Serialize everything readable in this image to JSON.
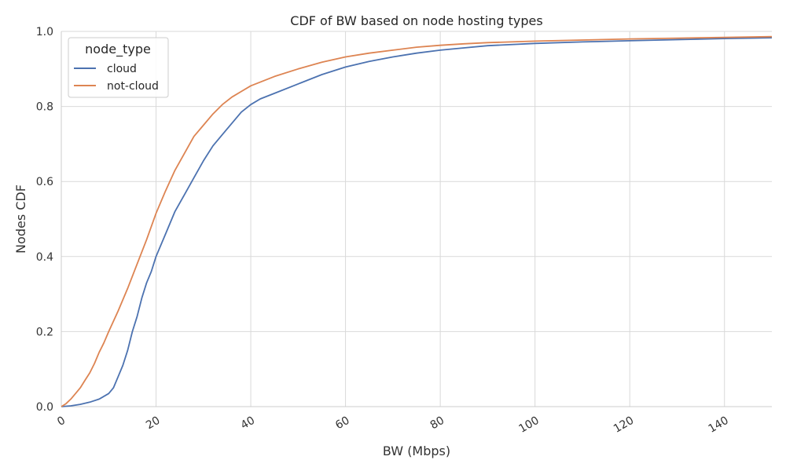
{
  "chart_data": {
    "type": "line",
    "title": "CDF of BW based on node hosting types",
    "xlabel": "BW (Mbps)",
    "ylabel": "Nodes CDF",
    "xlim": [
      0,
      150
    ],
    "ylim": [
      0,
      1
    ],
    "grid": true,
    "legend": {
      "title": "node_type",
      "placement": "top-left"
    },
    "x_ticks": [
      {
        "value": 0,
        "label": "0"
      },
      {
        "value": 20,
        "label": "20"
      },
      {
        "value": 40,
        "label": "40"
      },
      {
        "value": 60,
        "label": "60"
      },
      {
        "value": 80,
        "label": "80"
      },
      {
        "value": 100,
        "label": "100"
      },
      {
        "value": 120,
        "label": "120"
      },
      {
        "value": 140,
        "label": "140"
      }
    ],
    "y_ticks": [
      {
        "value": 0,
        "label": "0.0"
      },
      {
        "value": 0.2,
        "label": "0.2"
      },
      {
        "value": 0.4,
        "label": "0.4"
      },
      {
        "value": 0.6,
        "label": "0.6"
      },
      {
        "value": 0.8,
        "label": "0.8"
      },
      {
        "value": 1.0,
        "label": "1.0"
      }
    ],
    "series": [
      {
        "name": "cloud",
        "color": "#4c72b0",
        "points": [
          [
            0,
            0
          ],
          [
            2,
            0.002
          ],
          [
            4,
            0.006
          ],
          [
            6,
            0.012
          ],
          [
            8,
            0.02
          ],
          [
            10,
            0.035
          ],
          [
            11,
            0.05
          ],
          [
            12,
            0.08
          ],
          [
            13,
            0.11
          ],
          [
            14,
            0.15
          ],
          [
            15,
            0.2
          ],
          [
            16,
            0.24
          ],
          [
            17,
            0.29
          ],
          [
            18,
            0.33
          ],
          [
            19,
            0.36
          ],
          [
            20,
            0.4
          ],
          [
            22,
            0.46
          ],
          [
            24,
            0.52
          ],
          [
            26,
            0.565
          ],
          [
            28,
            0.61
          ],
          [
            30,
            0.655
          ],
          [
            32,
            0.695
          ],
          [
            34,
            0.725
          ],
          [
            36,
            0.755
          ],
          [
            38,
            0.785
          ],
          [
            40,
            0.805
          ],
          [
            42,
            0.82
          ],
          [
            45,
            0.835
          ],
          [
            50,
            0.86
          ],
          [
            55,
            0.885
          ],
          [
            60,
            0.905
          ],
          [
            65,
            0.92
          ],
          [
            70,
            0.932
          ],
          [
            75,
            0.942
          ],
          [
            80,
            0.95
          ],
          [
            85,
            0.956
          ],
          [
            90,
            0.962
          ],
          [
            100,
            0.968
          ],
          [
            110,
            0.972
          ],
          [
            120,
            0.975
          ],
          [
            130,
            0.978
          ],
          [
            140,
            0.981
          ],
          [
            150,
            0.983
          ]
        ]
      },
      {
        "name": "not-cloud",
        "color": "#dd8452",
        "points": [
          [
            0,
            0
          ],
          [
            1,
            0.008
          ],
          [
            2,
            0.02
          ],
          [
            3,
            0.035
          ],
          [
            4,
            0.05
          ],
          [
            5,
            0.07
          ],
          [
            6,
            0.09
          ],
          [
            7,
            0.115
          ],
          [
            8,
            0.145
          ],
          [
            9,
            0.17
          ],
          [
            10,
            0.2
          ],
          [
            12,
            0.255
          ],
          [
            14,
            0.315
          ],
          [
            16,
            0.38
          ],
          [
            18,
            0.445
          ],
          [
            20,
            0.515
          ],
          [
            22,
            0.575
          ],
          [
            24,
            0.63
          ],
          [
            26,
            0.675
          ],
          [
            28,
            0.72
          ],
          [
            30,
            0.75
          ],
          [
            32,
            0.78
          ],
          [
            34,
            0.805
          ],
          [
            36,
            0.825
          ],
          [
            38,
            0.84
          ],
          [
            40,
            0.855
          ],
          [
            45,
            0.88
          ],
          [
            50,
            0.9
          ],
          [
            55,
            0.918
          ],
          [
            60,
            0.932
          ],
          [
            65,
            0.942
          ],
          [
            70,
            0.95
          ],
          [
            75,
            0.958
          ],
          [
            80,
            0.963
          ],
          [
            85,
            0.967
          ],
          [
            90,
            0.97
          ],
          [
            100,
            0.974
          ],
          [
            110,
            0.977
          ],
          [
            120,
            0.98
          ],
          [
            130,
            0.982
          ],
          [
            140,
            0.984
          ],
          [
            150,
            0.986
          ]
        ]
      }
    ]
  }
}
